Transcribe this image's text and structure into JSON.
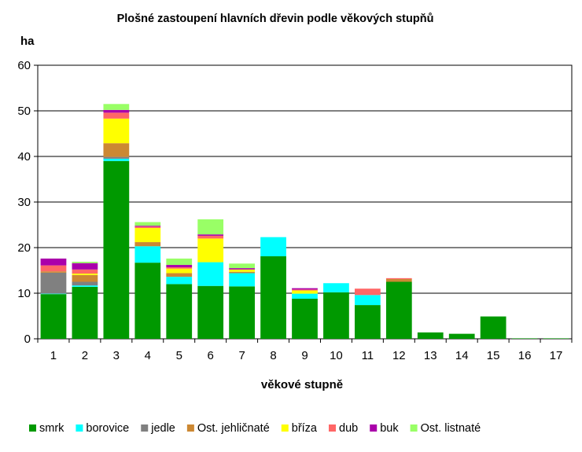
{
  "chart_data": {
    "type": "bar",
    "stacked": true,
    "title": "Plošné zastoupení hlavních dřevin podle věkových stupňů",
    "ylabel": "ha",
    "xlabel": "věkové stupně",
    "ylim": [
      0,
      60
    ],
    "yticks": [
      0,
      10,
      20,
      30,
      40,
      50,
      60
    ],
    "grid": true,
    "legend_position": "bottom",
    "categories": [
      "1",
      "2",
      "3",
      "4",
      "5",
      "6",
      "7",
      "8",
      "9",
      "10",
      "11",
      "12",
      "13",
      "14",
      "15",
      "16",
      "17"
    ],
    "series": [
      {
        "name": "smrk",
        "color": "#009900",
        "values": [
          9.8,
          11.4,
          39.0,
          16.7,
          12.0,
          11.6,
          11.5,
          18.1,
          8.8,
          10.2,
          7.4,
          12.5,
          1.4,
          1.1,
          4.9,
          0.1,
          0.1
        ]
      },
      {
        "name": "borovice",
        "color": "#00FFFF",
        "values": [
          0.1,
          0.3,
          0.5,
          3.6,
          1.6,
          5.2,
          2.9,
          4.2,
          1.1,
          2.0,
          2.2,
          0,
          0,
          0,
          0,
          0,
          0
        ]
      },
      {
        "name": "jedle",
        "color": "#808080",
        "values": [
          4.6,
          0.8,
          0.4,
          0,
          0,
          0,
          0,
          0,
          0,
          0,
          0,
          0,
          0,
          0,
          0,
          0,
          0
        ]
      },
      {
        "name": "Ost. jehličnaté",
        "color": "#CC8833",
        "values": [
          0.3,
          1.5,
          3.0,
          0.9,
          0.8,
          0,
          0.3,
          0,
          0,
          0,
          0,
          0.6,
          0,
          0,
          0,
          0,
          0
        ]
      },
      {
        "name": "bříza",
        "color": "#FFFF00",
        "values": [
          0,
          0.3,
          5.4,
          3.1,
          1.0,
          5.2,
          0.5,
          0,
          0.7,
          0,
          0,
          0,
          0,
          0,
          0,
          0,
          0
        ]
      },
      {
        "name": "dub",
        "color": "#FF6666",
        "values": [
          1.3,
          0.9,
          1.3,
          0.3,
          0.3,
          0.6,
          0,
          0,
          0.2,
          0,
          1.4,
          0.2,
          0,
          0,
          0,
          0,
          0
        ]
      },
      {
        "name": "buk",
        "color": "#AA00AA",
        "values": [
          1.5,
          1.4,
          0.6,
          0.2,
          0.5,
          0.3,
          0.3,
          0,
          0.3,
          0,
          0,
          0,
          0,
          0,
          0,
          0,
          0
        ]
      },
      {
        "name": "Ost. listnaté",
        "color": "#99FF66",
        "values": [
          0,
          0.3,
          1.3,
          0.8,
          1.4,
          3.3,
          1.0,
          0,
          0,
          0,
          0,
          0,
          0,
          0,
          0,
          0,
          0
        ]
      }
    ]
  }
}
